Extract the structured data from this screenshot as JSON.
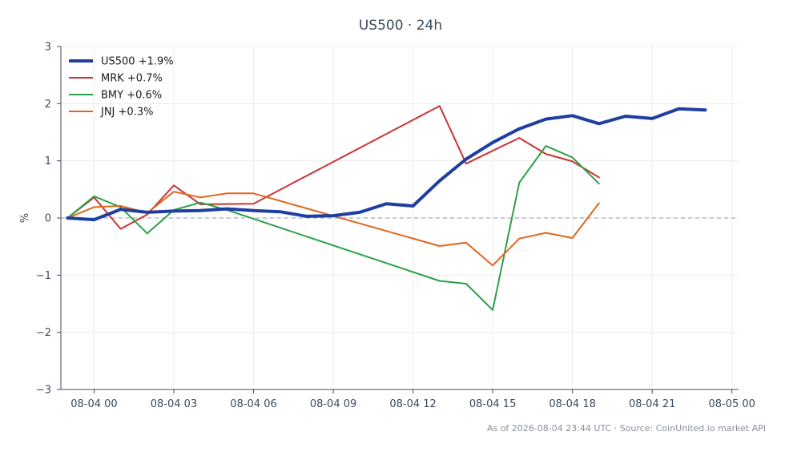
{
  "chart_data": {
    "type": "line",
    "title": "US500 · 24h",
    "ylabel": "%",
    "xlabel": "",
    "x_range": [
      "2026-08-03 22:45",
      "2026-08-05 00:15"
    ],
    "ylim": [
      -3,
      3
    ],
    "y_ticks": [
      {
        "value": 3,
        "label": "3"
      },
      {
        "value": 2,
        "label": "2"
      },
      {
        "value": 1,
        "label": "1"
      },
      {
        "value": 0,
        "label": "0"
      },
      {
        "value": -1,
        "label": "−1"
      },
      {
        "value": -2,
        "label": "−2"
      },
      {
        "value": -3,
        "label": "−3"
      }
    ],
    "x_ticks": [
      {
        "value": "2026-08-04 00:00",
        "label": "08-04 00"
      },
      {
        "value": "2026-08-04 03:00",
        "label": "08-04 03"
      },
      {
        "value": "2026-08-04 06:00",
        "label": "08-04 06"
      },
      {
        "value": "2026-08-04 09:00",
        "label": "08-04 09"
      },
      {
        "value": "2026-08-04 12:00",
        "label": "08-04 12"
      },
      {
        "value": "2026-08-04 15:00",
        "label": "08-04 15"
      },
      {
        "value": "2026-08-04 18:00",
        "label": "08-04 18"
      },
      {
        "value": "2026-08-04 21:00",
        "label": "08-04 21"
      },
      {
        "value": "2026-08-05 00:00",
        "label": "08-05 00"
      }
    ],
    "grid": true,
    "zero_line": {
      "y": 0,
      "style": "dashed",
      "color": "#8a96b8"
    },
    "legend": {
      "placement": "top-left"
    },
    "series": [
      {
        "name": "US500 +1.9%",
        "color": "#1f3fa0",
        "emphasis": true,
        "x": [
          "2026-08-03 23:00",
          "2026-08-04 00:00",
          "2026-08-04 01:00",
          "2026-08-04 02:00",
          "2026-08-04 03:00",
          "2026-08-04 04:00",
          "2026-08-04 05:00",
          "2026-08-04 06:00",
          "2026-08-04 07:00",
          "2026-08-04 08:00",
          "2026-08-04 09:00",
          "2026-08-04 10:00",
          "2026-08-04 11:00",
          "2026-08-04 12:00",
          "2026-08-04 13:00",
          "2026-08-04 14:00",
          "2026-08-04 15:00",
          "2026-08-04 16:00",
          "2026-08-04 17:00",
          "2026-08-04 18:00",
          "2026-08-04 19:00",
          "2026-08-04 20:00",
          "2026-08-04 21:00",
          "2026-08-04 22:00",
          "2026-08-04 23:00"
        ],
        "y": [
          0.0,
          -0.03,
          0.15,
          0.1,
          0.12,
          0.13,
          0.16,
          0.13,
          0.11,
          0.03,
          0.04,
          0.1,
          0.25,
          0.21,
          0.65,
          1.03,
          1.32,
          1.56,
          1.73,
          1.79,
          1.65,
          1.78,
          1.74,
          1.91,
          1.89
        ]
      },
      {
        "name": "MRK +0.7%",
        "color": "#cc3333",
        "emphasis": false,
        "x": [
          "2026-08-03 23:00",
          "2026-08-04 00:00",
          "2026-08-04 01:00",
          "2026-08-04 02:00",
          "2026-08-04 03:00",
          "2026-08-04 04:00",
          "2026-08-04 06:00",
          "2026-08-04 13:00",
          "2026-08-04 14:00",
          "2026-08-04 16:00",
          "2026-08-04 17:00",
          "2026-08-04 18:00",
          "2026-08-04 19:00"
        ],
        "y": [
          0.0,
          0.36,
          -0.19,
          0.06,
          0.57,
          0.24,
          0.25,
          1.96,
          0.95,
          1.4,
          1.12,
          0.99,
          0.71
        ]
      },
      {
        "name": "BMY +0.6%",
        "color": "#2ca048",
        "emphasis": false,
        "x": [
          "2026-08-03 23:00",
          "2026-08-04 00:00",
          "2026-08-04 01:00",
          "2026-08-04 02:00",
          "2026-08-04 03:00",
          "2026-08-04 04:00",
          "2026-08-04 05:00",
          "2026-08-04 13:00",
          "2026-08-04 14:00",
          "2026-08-04 15:00",
          "2026-08-04 16:00",
          "2026-08-04 17:00",
          "2026-08-04 18:00",
          "2026-08-04 19:00"
        ],
        "y": [
          0.0,
          0.38,
          0.19,
          -0.27,
          0.14,
          0.27,
          0.14,
          -1.1,
          -1.15,
          -1.61,
          0.62,
          1.26,
          1.06,
          0.6
        ]
      },
      {
        "name": "JNJ +0.3%",
        "color": "#e0651c",
        "emphasis": false,
        "x": [
          "2026-08-03 23:00",
          "2026-08-04 00:00",
          "2026-08-04 01:00",
          "2026-08-04 02:00",
          "2026-08-04 03:00",
          "2026-08-04 04:00",
          "2026-08-04 05:00",
          "2026-08-04 06:00",
          "2026-08-04 13:00",
          "2026-08-04 14:00",
          "2026-08-04 15:00",
          "2026-08-04 16:00",
          "2026-08-04 17:00",
          "2026-08-04 18:00",
          "2026-08-04 19:00"
        ],
        "y": [
          0.0,
          0.19,
          0.21,
          0.09,
          0.46,
          0.36,
          0.43,
          0.43,
          -0.49,
          -0.43,
          -0.83,
          -0.36,
          -0.26,
          -0.35,
          0.26
        ]
      }
    ]
  },
  "footer": {
    "text": "As of 2026-08-04 23:44 UTC · Source: CoinUnited.io market API"
  }
}
